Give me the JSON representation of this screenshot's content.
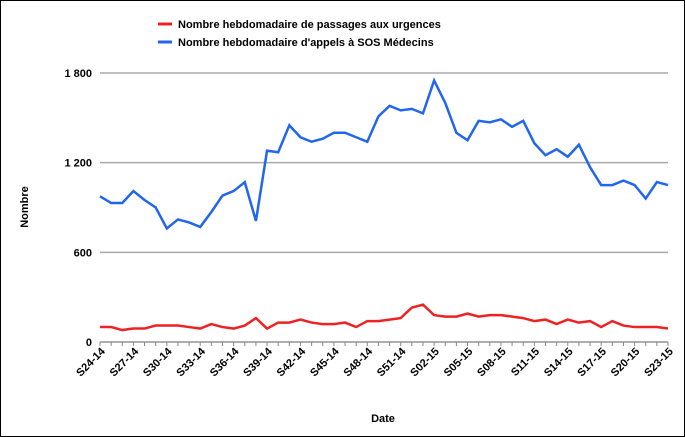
{
  "chart_data": {
    "type": "line",
    "x_label": "Date",
    "y_label": "Nombre",
    "categories": [
      "S24-14",
      null,
      null,
      "S27-14",
      null,
      null,
      "S30-14",
      null,
      null,
      "S33-14",
      null,
      null,
      "S36-14",
      null,
      null,
      "S39-14",
      null,
      null,
      "S42-14",
      null,
      null,
      "S45-14",
      null,
      null,
      "S48-14",
      null,
      null,
      "S51-14",
      null,
      null,
      "S02-15",
      null,
      null,
      "S05-15",
      null,
      null,
      "S08-15",
      null,
      null,
      "S11-15",
      null,
      null,
      "S14-15",
      null,
      null,
      "S17-15",
      null,
      null,
      "S20-15",
      null,
      null,
      "S23-15"
    ],
    "series": [
      {
        "name": "Nombre hebdomadaire de passages aux urgences",
        "color": "#ee2222",
        "values": [
          100,
          100,
          80,
          90,
          90,
          110,
          110,
          110,
          100,
          90,
          120,
          100,
          90,
          110,
          160,
          90,
          130,
          130,
          150,
          130,
          120,
          120,
          130,
          100,
          140,
          140,
          150,
          160,
          230,
          250,
          180,
          170,
          170,
          190,
          170,
          180,
          180,
          170,
          160,
          140,
          150,
          120,
          150,
          130,
          140,
          100,
          140,
          110,
          100,
          100,
          100,
          90
        ]
      },
      {
        "name": "Nombre hebdomadaire d'appels à SOS Médecins",
        "color": "#2266ee",
        "values": [
          975,
          930,
          930,
          1010,
          950,
          900,
          760,
          820,
          800,
          770,
          870,
          980,
          1010,
          1070,
          810,
          1280,
          1270,
          1450,
          1370,
          1340,
          1360,
          1400,
          1400,
          1370,
          1340,
          1510,
          1580,
          1550,
          1560,
          1530,
          1750,
          1600,
          1400,
          1350,
          1480,
          1470,
          1490,
          1440,
          1480,
          1330,
          1250,
          1290,
          1240,
          1320,
          1170,
          1050,
          1050,
          1080,
          1050,
          960,
          1070,
          1050
        ]
      }
    ],
    "ylim": [
      0,
      1800
    ],
    "yticks": [
      0,
      600,
      {
        "value": 1200,
        "label": "1 200"
      },
      {
        "value": 1800,
        "label": "1 800"
      }
    ],
    "grid": true,
    "legend": "top"
  }
}
